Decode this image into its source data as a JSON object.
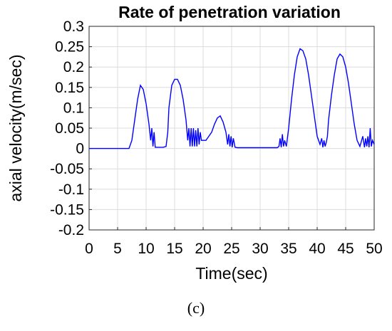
{
  "chart_data": {
    "type": "line",
    "title": "Rate of penetration variation",
    "xlabel": "Time(sec)",
    "ylabel": "axial velocity(m/sec)",
    "xlim": [
      0,
      50
    ],
    "ylim": [
      -0.2,
      0.3
    ],
    "xticks": [
      0,
      5,
      10,
      15,
      20,
      25,
      30,
      35,
      40,
      45,
      50
    ],
    "yticks": [
      -0.2,
      -0.15,
      -0.1,
      -0.05,
      0,
      0.05,
      0.1,
      0.15,
      0.2,
      0.25,
      0.3
    ],
    "grid": true,
    "line_color": "#0000ff",
    "series": [
      {
        "x": [
          0,
          7,
          7.5,
          8,
          8.5,
          9,
          9.5,
          10,
          10.5,
          10.8,
          11,
          11.2,
          11.4,
          11.6,
          12,
          13,
          13.5,
          13.8,
          14,
          14.5,
          15,
          15.5,
          16,
          16.5,
          17,
          17.3,
          17.5,
          17.7,
          17.9,
          18.1,
          18.3,
          18.5,
          18.7,
          18.9,
          19.1,
          19.3,
          19.5,
          19.7,
          20,
          20.5,
          21,
          21.5,
          22,
          22.5,
          23,
          23.5,
          24,
          24.3,
          24.5,
          24.7,
          24.9,
          25.1,
          25.3,
          25.6,
          26,
          28,
          30,
          33,
          33.3,
          33.5,
          33.7,
          33.9,
          34.1,
          34.3,
          34.6,
          35,
          35.5,
          36,
          36.5,
          37,
          37.5,
          38,
          38.5,
          39,
          39.5,
          40,
          40.5,
          40.8,
          41,
          41.2,
          41.4,
          41.6,
          41.8,
          42,
          42.5,
          43,
          43.5,
          44,
          44.5,
          45,
          45.5,
          46,
          46.5,
          47,
          47.5,
          48,
          48.3,
          48.5,
          48.7,
          48.9,
          49.1,
          49.3,
          49.5,
          49.7,
          50
        ],
        "y": [
          0,
          0,
          0.02,
          0.07,
          0.12,
          0.155,
          0.145,
          0.11,
          0.06,
          0.02,
          0.05,
          0.005,
          0.04,
          0.003,
          0.003,
          0.003,
          0.005,
          0.04,
          0.1,
          0.155,
          0.17,
          0.17,
          0.155,
          0.12,
          0.07,
          0.02,
          0.05,
          0.005,
          0.05,
          0.005,
          0.05,
          0.005,
          0.045,
          0.005,
          0.05,
          0.01,
          0.04,
          0.02,
          0.02,
          0.02,
          0.03,
          0.04,
          0.06,
          0.075,
          0.08,
          0.065,
          0.04,
          0.01,
          0.035,
          0.005,
          0.03,
          0.003,
          0.025,
          0.003,
          0.002,
          0.002,
          0.002,
          0.002,
          0.005,
          0.025,
          0.003,
          0.035,
          0.005,
          0.02,
          0.005,
          0.05,
          0.12,
          0.18,
          0.225,
          0.245,
          0.24,
          0.22,
          0.18,
          0.13,
          0.08,
          0.03,
          0.01,
          0.025,
          0.003,
          0.02,
          0.005,
          0.015,
          0.03,
          0.07,
          0.13,
          0.18,
          0.22,
          0.232,
          0.225,
          0.2,
          0.16,
          0.11,
          0.06,
          0.02,
          0.005,
          0.03,
          0.003,
          0.025,
          0.005,
          0.03,
          0.003,
          0.05,
          0.005,
          0.02,
          0.01
        ]
      }
    ]
  },
  "caption": "(c)"
}
